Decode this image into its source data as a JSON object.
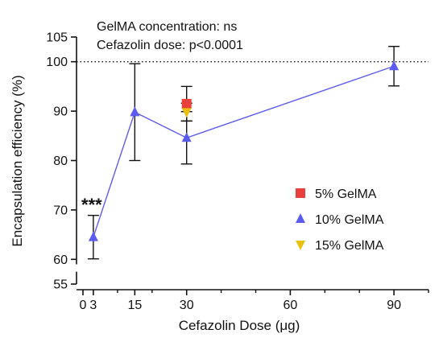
{
  "chart_data": {
    "type": "scatter",
    "xlabel": "Cefazolin Dose (μg)",
    "ylabel": "Encapsulation efficiency (%)",
    "xlim": [
      0,
      100
    ],
    "ylim": [
      55,
      105
    ],
    "x_ticks": [
      0,
      3,
      15,
      30,
      60,
      90
    ],
    "x_tick_labels": [
      "0",
      "3",
      "15",
      "30",
      "60",
      "90"
    ],
    "y_ticks": [
      55,
      60,
      70,
      80,
      90,
      100,
      105
    ],
    "y_tick_labels": [
      "55",
      "60",
      "70",
      "80",
      "90",
      "100",
      "105"
    ],
    "y_axis_break": true,
    "reference_line": {
      "y": 100,
      "style": "dotted"
    },
    "annotations": [
      "GelMA concentration: ns",
      "Cefazolin dose: p<0.0001"
    ],
    "significance_label": {
      "text": "***",
      "x": 3
    },
    "legend_position": "lower-right",
    "series": [
      {
        "name": "5% GelMA",
        "marker": "square",
        "color": "#e8403a",
        "connected": false,
        "points": [
          {
            "x": 30,
            "y": 91.5,
            "err": 0
          }
        ]
      },
      {
        "name": "10% GelMA",
        "marker": "triangle-up",
        "color": "#5b5bf0",
        "connected": true,
        "points": [
          {
            "x": 3,
            "y": 64.5,
            "err": 4.4
          },
          {
            "x": 15,
            "y": 89.8,
            "err": 9.8
          },
          {
            "x": 30,
            "y": 84.6,
            "err": 5.3
          },
          {
            "x": 90,
            "y": 99.1,
            "err": 4.0
          }
        ]
      },
      {
        "name": "15% GelMA",
        "marker": "triangle-down",
        "color": "#e7c010",
        "connected": false,
        "points": [
          {
            "x": 30,
            "y": 89.8,
            "err": 1.8
          }
        ]
      }
    ],
    "extra_errorbars": [
      {
        "x": 30,
        "y": 91.5,
        "err": 3.5
      }
    ]
  }
}
